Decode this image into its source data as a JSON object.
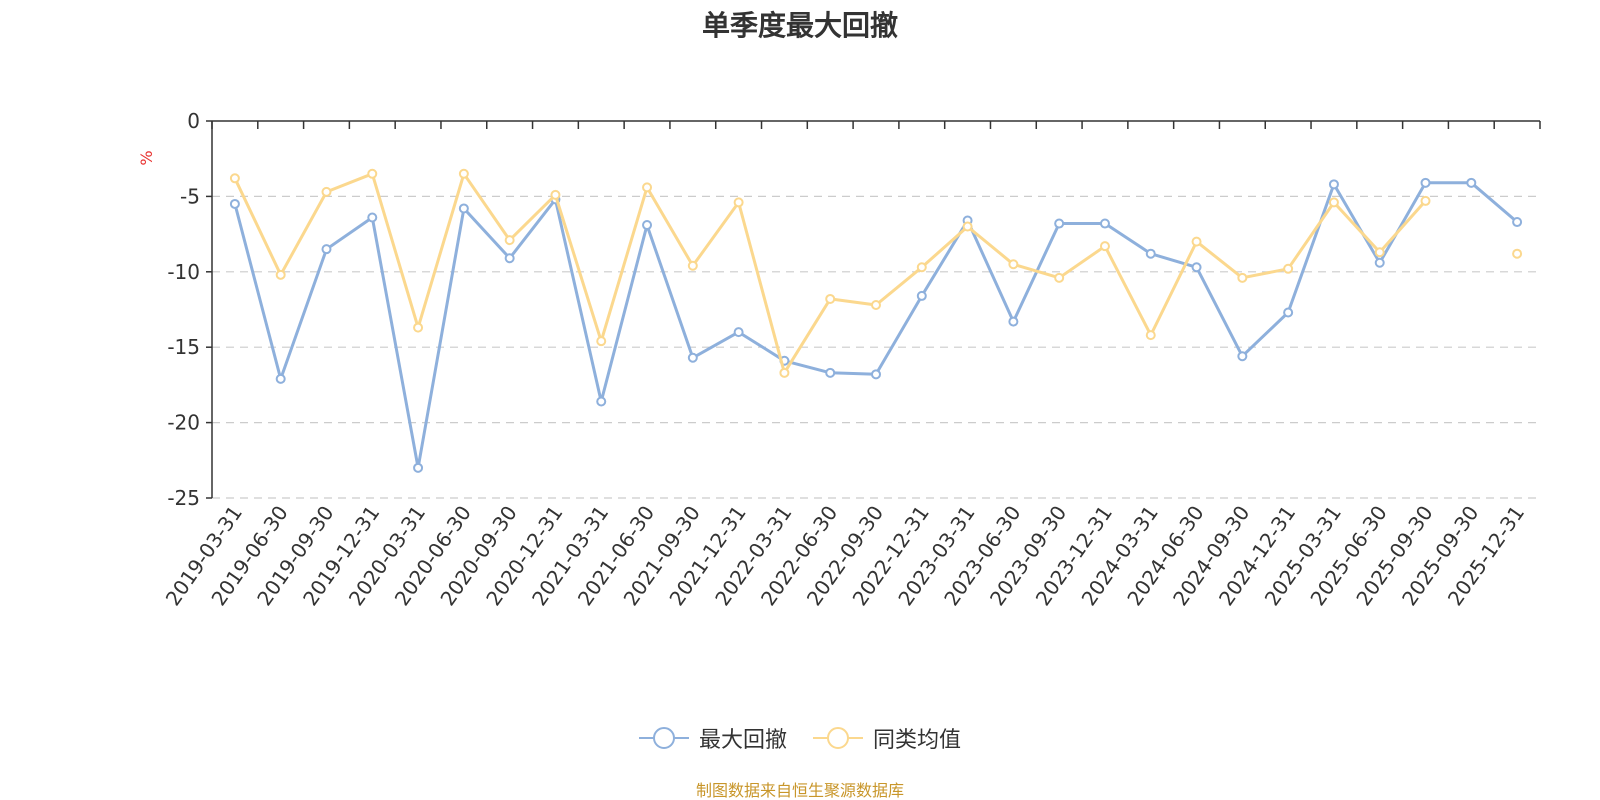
{
  "chart_data": {
    "type": "line",
    "title": "单季度最大回撤",
    "ylabel": "%",
    "ylim": [
      -25,
      0
    ],
    "yticks": [
      0,
      -5,
      -10,
      -15,
      -20,
      -25
    ],
    "grid": true,
    "legend_position": "bottom",
    "categories": [
      "2019-03-31",
      "2019-06-30",
      "2019-09-30",
      "2019-12-31",
      "2020-03-31",
      "2020-06-30",
      "2020-09-30",
      "2020-12-31",
      "2021-03-31",
      "2021-06-30",
      "2021-09-30",
      "2021-12-31",
      "2022-03-31",
      "2022-06-30",
      "2022-09-30",
      "2022-12-31",
      "2023-03-31",
      "2023-06-30",
      "2023-09-30",
      "2023-12-31",
      "2024-03-31",
      "2024-06-30",
      "2024-09-30",
      "2024-12-31",
      "2025-03-31",
      "2025-06-30",
      "2025-09-30",
      "2025-09-30",
      "2025-12-31"
    ],
    "series": [
      {
        "name": "最大回撤",
        "color": "#8eb0dc",
        "values": [
          -5.5,
          -17.1,
          -8.5,
          -6.4,
          -23.0,
          -5.8,
          -9.1,
          -5.2,
          -18.6,
          -6.9,
          -15.7,
          -14.0,
          -15.9,
          -16.7,
          -16.8,
          -11.6,
          -6.6,
          -13.3,
          -6.8,
          -6.8,
          -8.8,
          -9.7,
          -15.6,
          -12.7,
          -4.2,
          -9.4,
          -4.1,
          -4.1,
          -6.7
        ]
      },
      {
        "name": "同类均值",
        "color": "#fbd88e",
        "values": [
          -3.8,
          -10.2,
          -4.7,
          -3.5,
          -13.7,
          -3.5,
          -7.9,
          -4.9,
          -14.6,
          -4.4,
          -9.6,
          -5.4,
          -16.7,
          -11.8,
          -12.2,
          -9.7,
          -7.0,
          -9.5,
          -10.4,
          -8.3,
          -14.2,
          -8.0,
          -10.4,
          -9.8,
          -5.4,
          -8.7,
          -5.3,
          null,
          -8.8
        ]
      }
    ]
  },
  "source_note": "制图数据来自恒生聚源数据库"
}
